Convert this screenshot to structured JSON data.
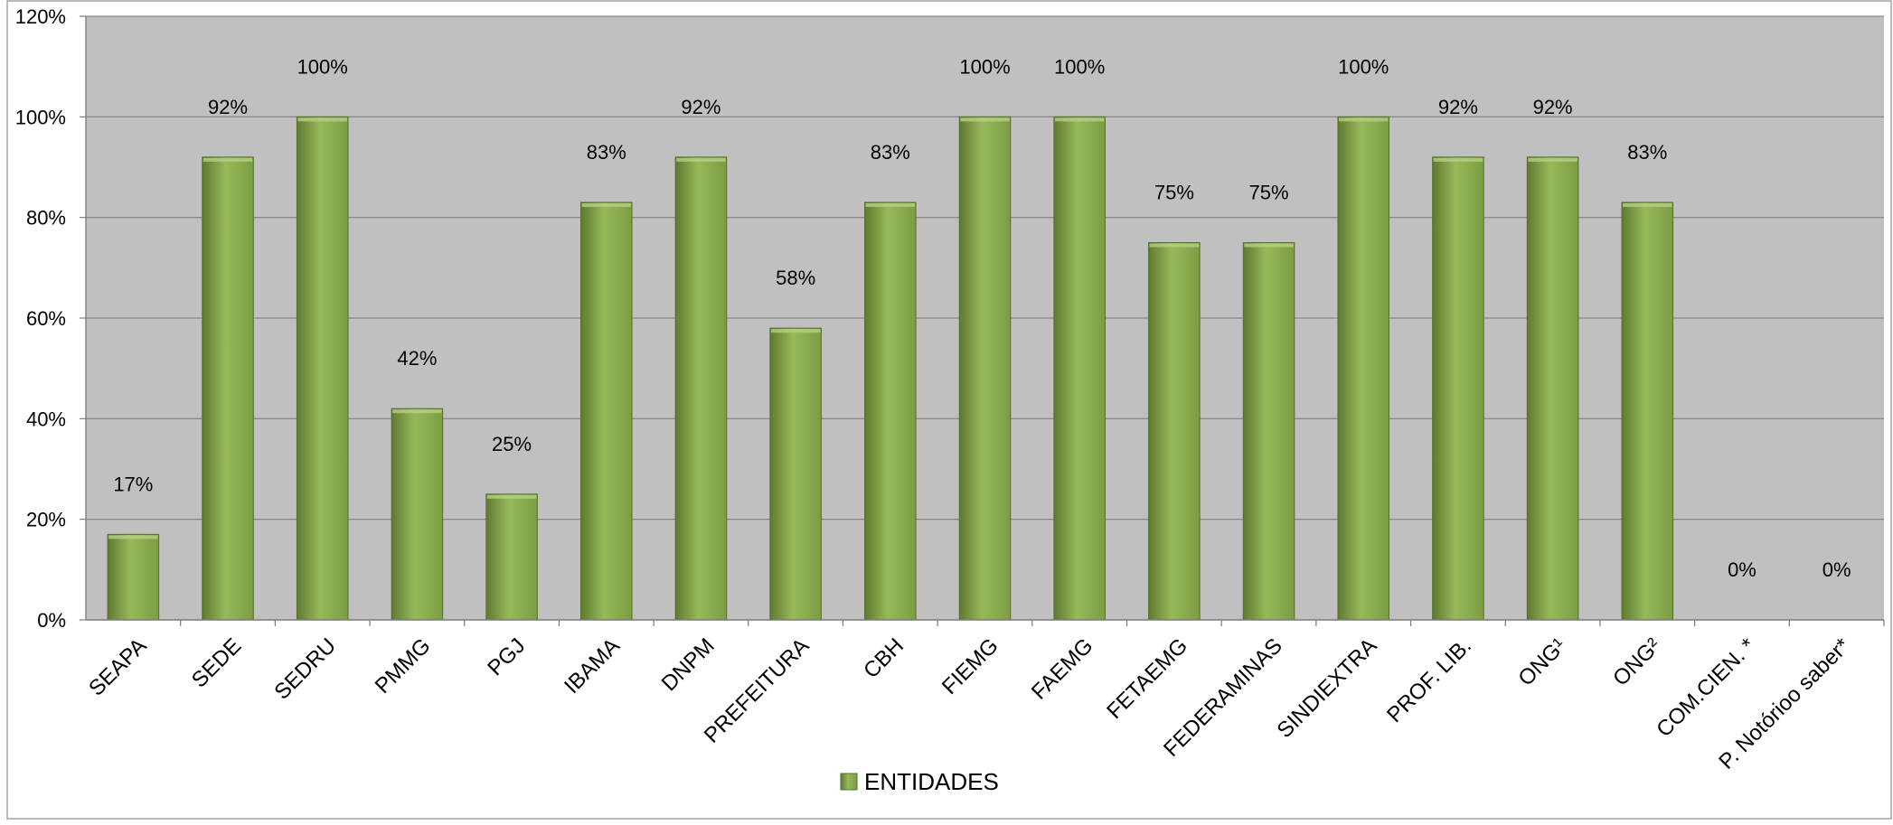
{
  "chart_data": {
    "type": "bar",
    "title": "",
    "xlabel": "",
    "ylabel": "",
    "ylim": [
      0,
      120
    ],
    "y_ticks": [
      "0%",
      "20%",
      "40%",
      "60%",
      "80%",
      "100%",
      "120%"
    ],
    "grid": true,
    "legend_position": "bottom",
    "categories": [
      "SEAPA",
      "SEDE",
      "SEDRU",
      "PMMG",
      "PGJ",
      "IBAMA",
      "DNPM",
      "PREFEITURA",
      "CBH",
      "FIEMG",
      "FAEMG",
      "FETAEMG",
      "FEDERAMINAS",
      "SINDIEXTRA",
      "PROF. LIB.",
      "ONG¹",
      "ONG²",
      "COM.CIEN. *",
      "P. Notórioo saber*"
    ],
    "series": [
      {
        "name": "ENTIDADES",
        "values": [
          17,
          92,
          100,
          42,
          25,
          83,
          92,
          58,
          83,
          100,
          100,
          75,
          75,
          100,
          92,
          92,
          83,
          0,
          0
        ],
        "data_labels": [
          "17%",
          "92%",
          "100%",
          "42%",
          "25%",
          "83%",
          "92%",
          "58%",
          "83%",
          "100%",
          "100%",
          "75%",
          "75%",
          "100%",
          "92%",
          "92%",
          "83%",
          "0%",
          "0%"
        ]
      }
    ],
    "colors": {
      "plot_background": "#c0c0c0",
      "bar_fill": "#7c9c42",
      "bar_light": "#97b95a",
      "bar_dark": "#5f7a30",
      "gridline": "#8a8a8a"
    }
  }
}
